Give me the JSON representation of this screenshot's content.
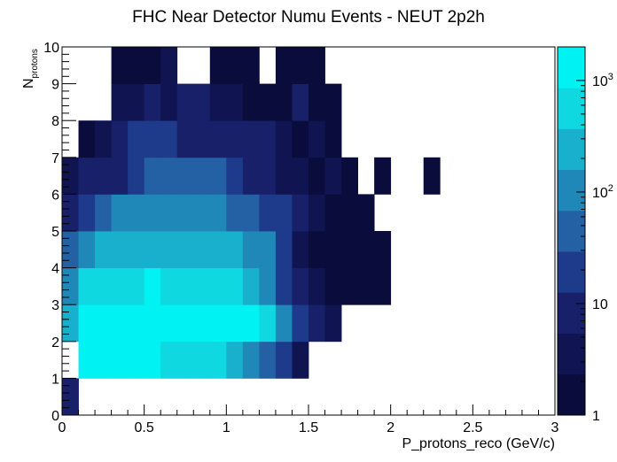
{
  "chart_data": {
    "type": "heatmap",
    "title": "FHC Near Detector Numu Events - NEUT 2p2h",
    "xlabel": "P_protons_reco (GeV/c)",
    "ylabel_main": "N",
    "ylabel_sub": "protons",
    "xlim": [
      0,
      3
    ],
    "ylim": [
      0,
      10
    ],
    "x_bin_width": 0.1,
    "y_bin_width": 1,
    "x_ticks": [
      "0",
      "0.5",
      "1",
      "1.5",
      "2",
      "2.5",
      "3"
    ],
    "y_ticks": [
      "0",
      "1",
      "2",
      "3",
      "4",
      "5",
      "6",
      "7",
      "8",
      "9",
      "10"
    ],
    "colorbar": {
      "scale": "log",
      "range": [
        1,
        2000
      ],
      "labels": [
        {
          "value": 1,
          "base": "1",
          "exp": ""
        },
        {
          "value": 10,
          "base": "10",
          "exp": ""
        },
        {
          "value": 100,
          "base": "10",
          "exp": "2"
        },
        {
          "value": 1000,
          "base": "10",
          "exp": "3"
        }
      ],
      "colors": [
        "#0a0c3c",
        "#101450",
        "#18206a",
        "#1e3a8a",
        "#2460a4",
        "#2088b8",
        "#18b0cc",
        "#10d8e0",
        "#00f2f2"
      ]
    },
    "rows": [
      {
        "n_protons": 0,
        "values": [
          12
        ]
      },
      {
        "n_protons": 1,
        "values": [
          0,
          1200,
          1200,
          1200,
          900,
          900,
          700,
          700,
          500,
          400,
          250,
          150,
          50,
          15,
          3
        ]
      },
      {
        "n_protons": 2,
        "values": [
          200,
          1000,
          2000,
          2000,
          2000,
          2000,
          2000,
          2000,
          2000,
          2000,
          1500,
          1000,
          600,
          150,
          25,
          8,
          4
        ]
      },
      {
        "n_protons": 3,
        "values": [
          70,
          400,
          550,
          650,
          650,
          1000,
          800,
          800,
          800,
          600,
          500,
          300,
          100,
          20,
          8,
          4,
          1,
          1,
          1,
          1
        ]
      },
      {
        "n_protons": 4,
        "values": [
          40,
          100,
          200,
          200,
          200,
          250,
          250,
          250,
          250,
          200,
          200,
          100,
          80,
          20,
          5,
          2,
          2,
          2,
          1,
          1
        ]
      },
      {
        "n_protons": 5,
        "values": [
          10,
          25,
          60,
          100,
          100,
          100,
          100,
          100,
          100,
          100,
          60,
          60,
          20,
          20,
          8,
          4,
          2,
          1,
          1
        ]
      },
      {
        "n_protons": 6,
        "values": [
          5,
          8,
          12,
          12,
          25,
          40,
          40,
          30,
          40,
          40,
          20,
          12,
          12,
          5,
          4,
          2,
          3,
          1,
          0,
          1,
          0,
          0,
          1
        ]
      },
      {
        "n_protons": 7,
        "values": [
          0,
          2,
          4,
          8,
          15,
          15,
          15,
          10,
          10,
          12,
          10,
          8,
          8,
          4,
          2,
          4,
          2
        ]
      },
      {
        "n_protons": 8,
        "values": [
          0,
          0,
          0,
          5,
          5,
          8,
          5,
          12,
          8,
          5,
          5,
          2,
          2,
          2,
          8,
          1,
          1
        ]
      },
      {
        "n_protons": 9,
        "values": [
          0,
          0,
          0,
          2,
          2,
          2,
          4,
          0,
          0,
          2,
          1,
          1,
          0,
          1,
          1,
          1,
          0,
          0,
          0,
          0,
          0,
          0,
          0,
          0,
          0,
          0,
          0,
          0,
          0,
          0,
          0
        ]
      }
    ]
  }
}
